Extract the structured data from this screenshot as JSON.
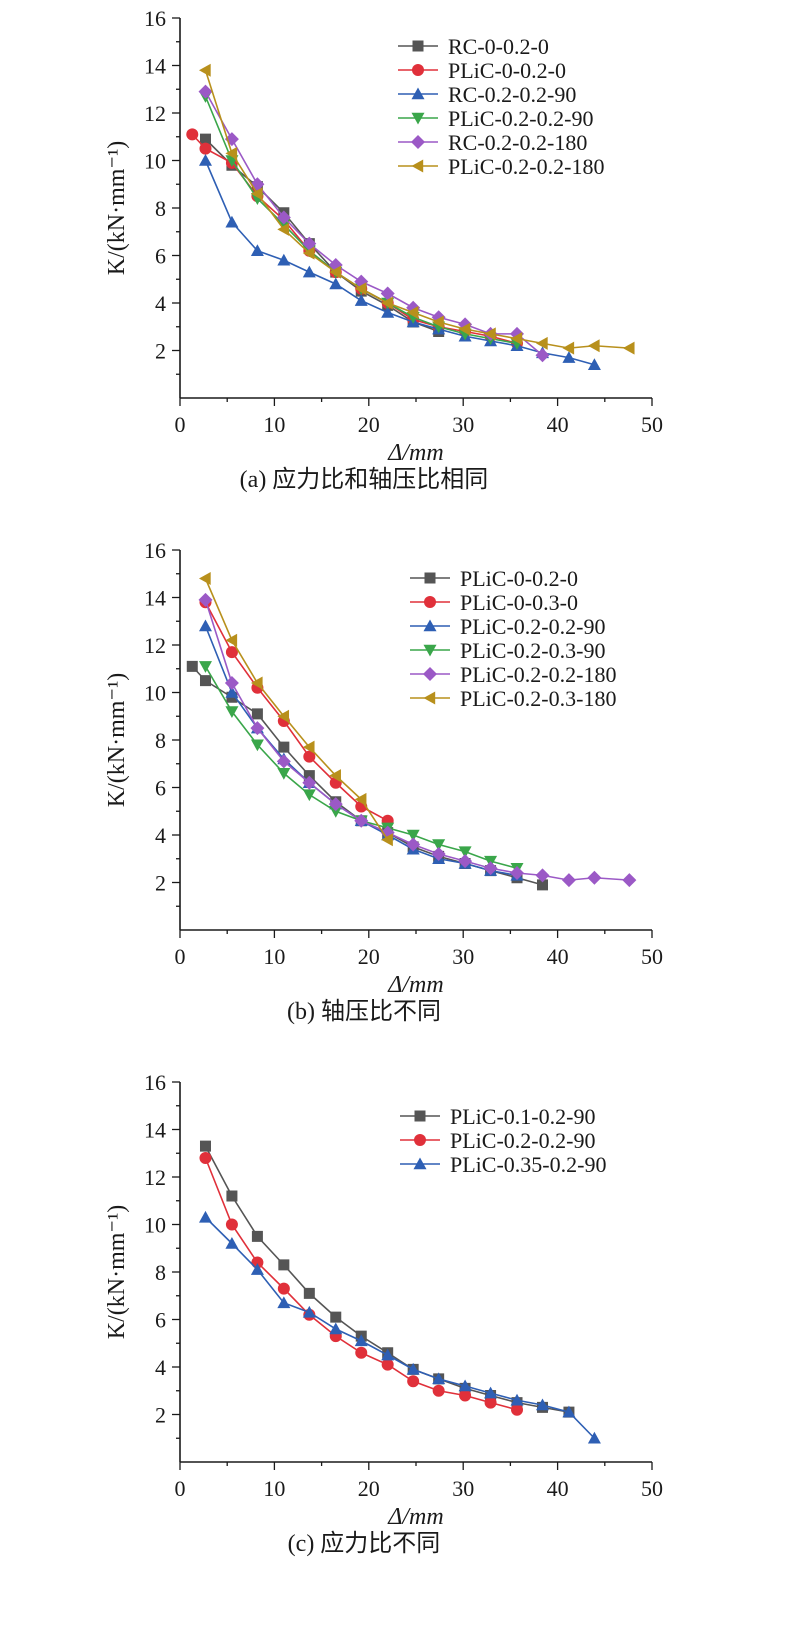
{
  "chart_data": [
    {
      "type": "line",
      "caption": "(a) 应力比和轴压比相同",
      "xlabel": "Δ/mm",
      "ylabel": "K/(kN·mm⁻¹)",
      "xlim": [
        0,
        50
      ],
      "ylim": [
        0,
        16
      ],
      "xticks": [
        "0",
        "10",
        "20",
        "30",
        "40",
        "50"
      ],
      "yticks": [
        "2",
        "4",
        "6",
        "8",
        "10",
        "12",
        "14",
        "16"
      ],
      "legend_position": "top-right",
      "series": [
        {
          "name": "RC-0-0.2-0",
          "color": "#555555",
          "marker": "square",
          "x": [
            2.7,
            5.5,
            8.2,
            11,
            13.7,
            16.5,
            19.2,
            22,
            24.7,
            27.4
          ],
          "y": [
            10.9,
            9.8,
            8.9,
            7.8,
            6.5,
            5.3,
            4.5,
            3.9,
            3.2,
            2.8
          ]
        },
        {
          "name": "PLiC-0-0.2-0",
          "color": "#e0303a",
          "marker": "circle",
          "x": [
            1.3,
            2.7,
            5.5,
            8.2,
            11,
            13.7,
            16.5,
            19.2,
            22,
            24.7,
            27.4,
            30.2,
            32.9,
            35.7
          ],
          "y": [
            11.1,
            10.5,
            9.9,
            8.5,
            7.5,
            6.2,
            5.3,
            4.6,
            4.0,
            3.3,
            3.0,
            2.8,
            2.6,
            2.3
          ]
        },
        {
          "name": "RC-0.2-0.2-90",
          "color": "#2e5fb4",
          "marker": "triangle-up",
          "x": [
            2.7,
            5.5,
            8.2,
            11,
            13.7,
            16.5,
            19.2,
            22,
            24.7,
            27.4,
            30.2,
            32.9,
            35.7,
            38.4,
            41.2,
            43.9
          ],
          "y": [
            10.0,
            7.4,
            6.2,
            5.8,
            5.3,
            4.8,
            4.1,
            3.6,
            3.2,
            2.9,
            2.6,
            2.4,
            2.2,
            1.9,
            1.7,
            1.4
          ]
        },
        {
          "name": "PLiC-0.2-0.2-90",
          "color": "#3aa64a",
          "marker": "triangle-down",
          "x": [
            2.7,
            5.5,
            8.2,
            11,
            13.7,
            16.5,
            19.2,
            22,
            24.7,
            27.4,
            30.2,
            32.9,
            35.7
          ],
          "y": [
            12.7,
            10.0,
            8.4,
            7.3,
            6.2,
            5.3,
            4.6,
            4.0,
            3.4,
            3.0,
            2.7,
            2.5,
            2.3
          ]
        },
        {
          "name": "RC-0.2-0.2-180",
          "color": "#9b59c6",
          "marker": "diamond",
          "x": [
            2.7,
            5.5,
            8.2,
            11,
            13.7,
            16.5,
            19.2,
            22,
            24.7,
            27.4,
            30.2,
            32.9,
            35.7,
            38.4
          ],
          "y": [
            12.9,
            10.9,
            9.0,
            7.6,
            6.5,
            5.6,
            4.9,
            4.4,
            3.8,
            3.4,
            3.1,
            2.7,
            2.7,
            1.8
          ]
        },
        {
          "name": "PLiC-0.2-0.2-180",
          "color": "#b8901c",
          "marker": "triangle-left",
          "x": [
            2.7,
            5.5,
            8.2,
            11,
            13.7,
            16.5,
            19.2,
            22,
            24.7,
            27.4,
            30.2,
            32.9,
            35.7,
            38.4,
            41.2,
            43.9,
            47.6
          ],
          "y": [
            13.8,
            10.3,
            8.6,
            7.1,
            6.1,
            5.3,
            4.6,
            4.0,
            3.6,
            3.2,
            2.9,
            2.7,
            2.5,
            2.3,
            2.1,
            2.2,
            2.1
          ]
        }
      ]
    },
    {
      "type": "line",
      "caption": "(b) 轴压比不同",
      "xlabel": "Δ/mm",
      "ylabel": "K/(kN·mm⁻¹)",
      "xlim": [
        0,
        50
      ],
      "ylim": [
        0,
        16
      ],
      "xticks": [
        "0",
        "10",
        "20",
        "30",
        "40",
        "50"
      ],
      "yticks": [
        "2",
        "4",
        "6",
        "8",
        "10",
        "12",
        "14",
        "16"
      ],
      "legend_position": "top-right",
      "series": [
        {
          "name": "PLiC-0-0.2-0",
          "color": "#555555",
          "marker": "square",
          "x": [
            1.3,
            2.7,
            5.5,
            8.2,
            11,
            13.7,
            16.5,
            19.2,
            22,
            24.7,
            27.4,
            30.2,
            32.9,
            35.7,
            38.4
          ],
          "y": [
            11.1,
            10.5,
            9.8,
            9.1,
            7.7,
            6.5,
            5.4,
            4.6,
            4.1,
            3.5,
            3.1,
            2.8,
            2.5,
            2.2,
            1.9
          ]
        },
        {
          "name": "PLiC-0-0.3-0",
          "color": "#e0303a",
          "marker": "circle",
          "x": [
            2.7,
            5.5,
            8.2,
            11,
            13.7,
            16.5,
            19.2,
            22
          ],
          "y": [
            13.8,
            11.7,
            10.2,
            8.8,
            7.3,
            6.2,
            5.2,
            4.6
          ]
        },
        {
          "name": "PLiC-0.2-0.2-90",
          "color": "#2e5fb4",
          "marker": "triangle-up",
          "x": [
            2.7,
            5.5,
            8.2,
            11,
            13.7,
            16.5,
            19.2,
            22,
            24.7,
            27.4,
            30.2,
            32.9,
            35.7
          ],
          "y": [
            12.8,
            10.0,
            8.5,
            7.2,
            6.2,
            5.3,
            4.6,
            4.0,
            3.4,
            3.0,
            2.8,
            2.5,
            2.3
          ]
        },
        {
          "name": "PLiC-0.2-0.3-90",
          "color": "#3aa64a",
          "marker": "triangle-down",
          "x": [
            2.7,
            5.5,
            8.2,
            11,
            13.7,
            16.5,
            19.2,
            22,
            24.7,
            27.4,
            30.2,
            32.9,
            35.7
          ],
          "y": [
            11.1,
            9.2,
            7.8,
            6.6,
            5.7,
            5.0,
            4.6,
            4.3,
            4.0,
            3.6,
            3.3,
            2.9,
            2.6
          ]
        },
        {
          "name": "PLiC-0.2-0.2-180",
          "color": "#9b59c6",
          "marker": "diamond",
          "x": [
            2.7,
            5.5,
            8.2,
            11,
            13.7,
            16.5,
            19.2,
            22,
            24.7,
            27.4,
            30.2,
            32.9,
            35.7,
            38.4,
            41.2,
            43.9,
            47.6
          ],
          "y": [
            13.9,
            10.4,
            8.5,
            7.1,
            6.2,
            5.3,
            4.6,
            4.1,
            3.6,
            3.2,
            2.9,
            2.6,
            2.4,
            2.3,
            2.1,
            2.2,
            2.1
          ]
        },
        {
          "name": "PLiC-0.2-0.3-180",
          "color": "#b8901c",
          "marker": "triangle-left",
          "x": [
            2.7,
            5.5,
            8.2,
            11,
            13.7,
            16.5,
            19.2,
            22
          ],
          "y": [
            14.8,
            12.2,
            10.4,
            9.0,
            7.7,
            6.5,
            5.5,
            3.8
          ]
        }
      ]
    },
    {
      "type": "line",
      "caption": "(c) 应力比不同",
      "xlabel": "Δ/mm",
      "ylabel": "K/(kN·mm⁻¹)",
      "xlim": [
        0,
        50
      ],
      "ylim": [
        0,
        16
      ],
      "xticks": [
        "0",
        "10",
        "20",
        "30",
        "40",
        "50"
      ],
      "yticks": [
        "2",
        "4",
        "6",
        "8",
        "10",
        "12",
        "14",
        "16"
      ],
      "legend_position": "top-right",
      "series": [
        {
          "name": "PLiC-0.1-0.2-90",
          "color": "#555555",
          "marker": "square",
          "x": [
            2.7,
            5.5,
            8.2,
            11,
            13.7,
            16.5,
            19.2,
            22,
            24.7,
            27.4,
            30.2,
            32.9,
            35.7,
            38.4,
            41.2
          ],
          "y": [
            13.3,
            11.2,
            9.5,
            8.3,
            7.1,
            6.1,
            5.3,
            4.6,
            3.9,
            3.5,
            3.1,
            2.8,
            2.5,
            2.3,
            2.1
          ]
        },
        {
          "name": "PLiC-0.2-0.2-90",
          "color": "#e0303a",
          "marker": "circle",
          "x": [
            2.7,
            5.5,
            8.2,
            11,
            13.7,
            16.5,
            19.2,
            22,
            24.7,
            27.4,
            30.2,
            32.9,
            35.7
          ],
          "y": [
            12.8,
            10.0,
            8.4,
            7.3,
            6.2,
            5.3,
            4.6,
            4.1,
            3.4,
            3.0,
            2.8,
            2.5,
            2.2
          ]
        },
        {
          "name": "PLiC-0.35-0.2-90",
          "color": "#2e5fb4",
          "marker": "triangle-up",
          "x": [
            2.7,
            5.5,
            8.2,
            11,
            13.7,
            16.5,
            19.2,
            22,
            24.7,
            27.4,
            30.2,
            32.9,
            35.7,
            38.4,
            41.2,
            43.9
          ],
          "y": [
            10.3,
            9.2,
            8.1,
            6.7,
            6.3,
            5.6,
            5.1,
            4.5,
            3.9,
            3.5,
            3.2,
            2.9,
            2.6,
            2.4,
            2.1,
            1.0
          ]
        }
      ]
    }
  ]
}
